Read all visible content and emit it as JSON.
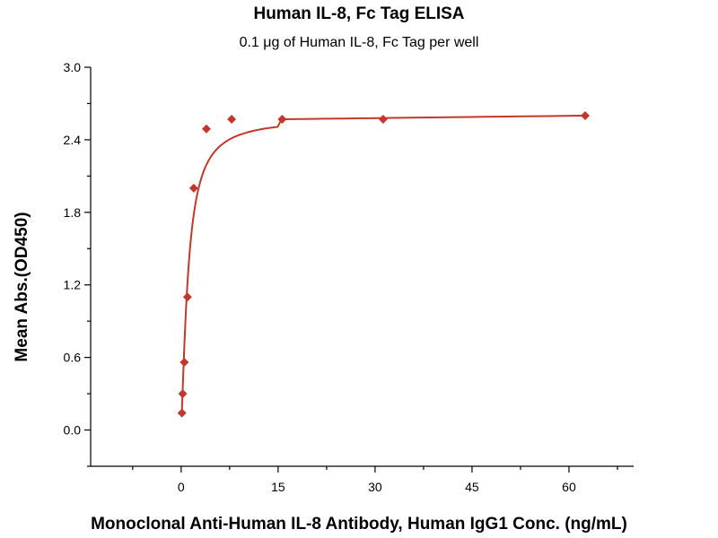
{
  "chart_data": {
    "type": "scatter",
    "title": "Human IL-8, Fc Tag ELISA",
    "subtitle": "0.1 μg of Human IL-8, Fc Tag per well",
    "xlabel": "Monoclonal Anti-Human IL-8 Antibody, Human IgG1 Conc. (ng/mL)",
    "ylabel": "Mean Abs.(OD450)",
    "xlim": [
      -14,
      70
    ],
    "ylim": [
      -0.3,
      3.0
    ],
    "x_ticks": [
      0,
      15,
      30,
      45,
      60
    ],
    "y_ticks": [
      0.0,
      0.6,
      1.2,
      1.8,
      2.4,
      3.0
    ],
    "y_tick_labels": [
      "0.0",
      "0.6",
      "1.2",
      "1.8",
      "2.4",
      "3.0"
    ],
    "grid": false,
    "color": "#c0392b",
    "series": [
      {
        "points": [
          {
            "x": 0.122,
            "y": 0.14
          },
          {
            "x": 0.244,
            "y": 0.3
          },
          {
            "x": 0.488,
            "y": 0.56
          },
          {
            "x": 0.977,
            "y": 1.1
          },
          {
            "x": 1.95,
            "y": 2.0
          },
          {
            "x": 3.91,
            "y": 2.49
          },
          {
            "x": 7.81,
            "y": 2.57
          },
          {
            "x": 15.63,
            "y": 2.57
          },
          {
            "x": 31.25,
            "y": 2.57
          },
          {
            "x": 62.5,
            "y": 2.6
          }
        ]
      }
    ]
  }
}
